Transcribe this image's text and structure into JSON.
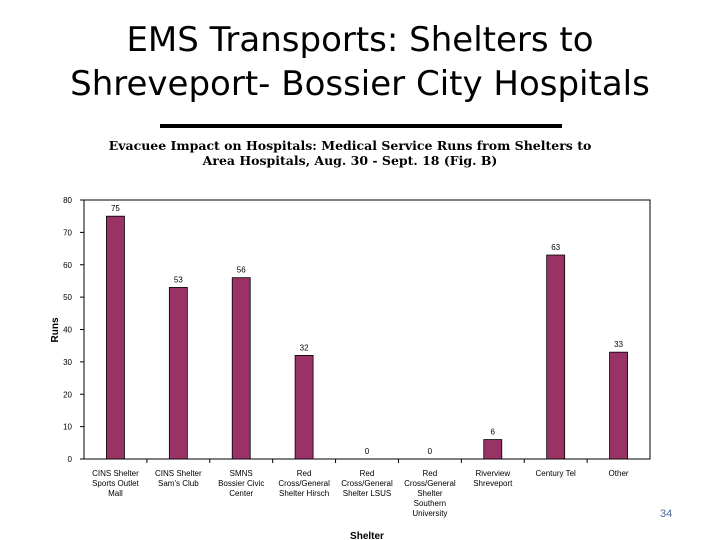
{
  "slide": {
    "title_line1": "EMS Transports:  Shelters to",
    "title_line2": "Shreveport- Bossier City Hospitals",
    "page_number": "34"
  },
  "chart_data": {
    "type": "bar",
    "title_line1": "Evacuee Impact on Hospitals:  Medical Service Runs from Shelters to",
    "title_line2": "Area Hospitals, Aug. 30 - Sept. 18 (Fig. B)",
    "xlabel": "Shelter",
    "ylabel": "Runs",
    "ylim": [
      0,
      80
    ],
    "yticks": [
      0,
      10,
      20,
      30,
      40,
      50,
      60,
      70,
      80
    ],
    "grid": false,
    "legend": "none",
    "bar_color": "#993366",
    "plot_background": "#ffffff",
    "categories": [
      [
        "CINS  Shelter",
        "Sports Outlet",
        "Mall"
      ],
      [
        "CINS  Shelter",
        "Sam's Club"
      ],
      [
        "SMNS",
        "Bossier Civic",
        "Center"
      ],
      [
        "Red",
        "Cross/General",
        "Shelter Hirsch"
      ],
      [
        "Red",
        "Cross/General",
        "Shelter LSUS"
      ],
      [
        "Red",
        "Cross/General",
        "Shelter",
        "Southern",
        "University"
      ],
      [
        "Riverview",
        "Shreveport"
      ],
      [
        "Century Tel"
      ],
      [
        "Other"
      ]
    ],
    "values": [
      75,
      53,
      56,
      32,
      0,
      0,
      6,
      63,
      33
    ]
  }
}
